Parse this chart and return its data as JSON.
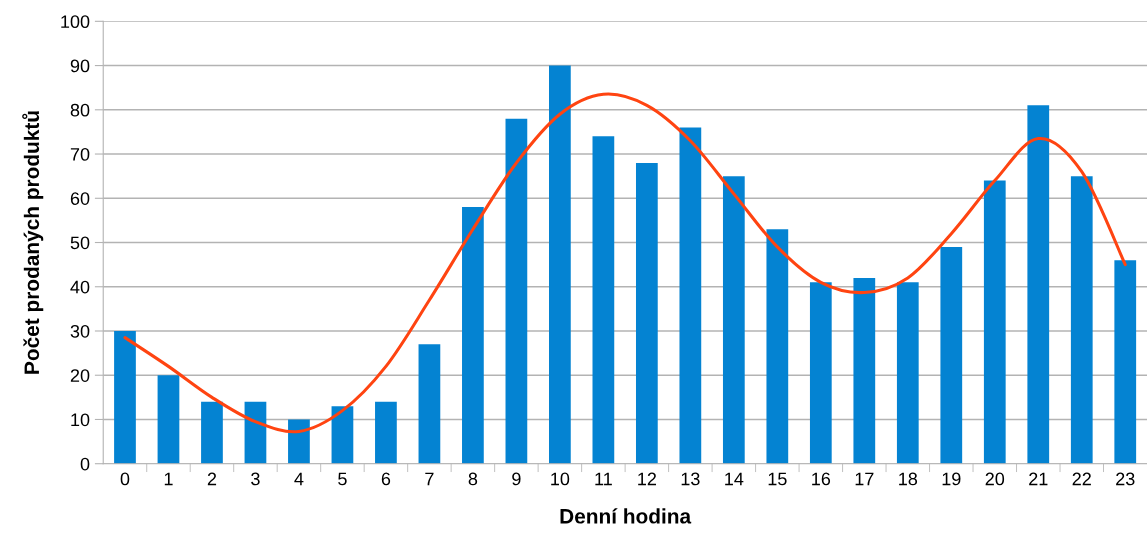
{
  "chart_data": {
    "type": "bar",
    "xlabel": "Denní hodina",
    "ylabel": "Počet prodaných produktů",
    "categories": [
      "0",
      "1",
      "2",
      "3",
      "4",
      "5",
      "6",
      "7",
      "8",
      "9",
      "10",
      "11",
      "12",
      "13",
      "14",
      "15",
      "16",
      "17",
      "18",
      "19",
      "20",
      "21",
      "22",
      "23"
    ],
    "ylim": [
      0,
      100
    ],
    "yticks": [
      0,
      10,
      20,
      30,
      40,
      50,
      60,
      70,
      80,
      90,
      100
    ],
    "grid": "y",
    "series": [
      {
        "color": "#0483d2",
        "values": [
          30,
          20,
          14,
          14,
          10,
          13,
          14,
          27,
          58,
          78,
          90,
          74,
          68,
          76,
          65,
          53,
          41,
          42,
          41,
          49,
          64,
          81,
          65,
          46
        ]
      },
      {
        "type": "line",
        "color": "#ff4411",
        "line_style": "solid",
        "marker": "none",
        "values": [
          28.5,
          22,
          15,
          9.5,
          7.3,
          12,
          22,
          37,
          53,
          68,
          79,
          83.5,
          81,
          73,
          61,
          49,
          41,
          38.7,
          42,
          52,
          64,
          73.5,
          66,
          45
        ]
      }
    ]
  }
}
